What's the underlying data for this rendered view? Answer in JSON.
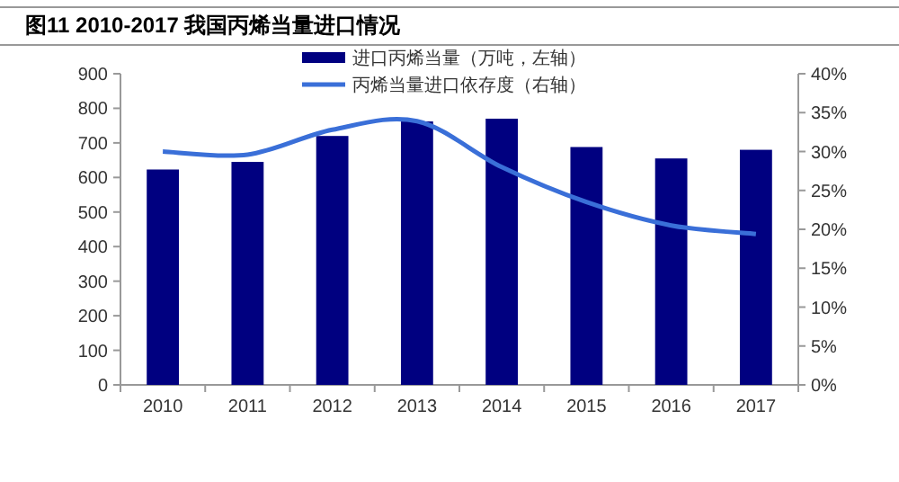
{
  "chart_data": {
    "type": "bar",
    "title": "图11  2010-2017 我国丙烯当量进口情况",
    "categories": [
      "2010",
      "2011",
      "2012",
      "2013",
      "2014",
      "2015",
      "2016",
      "2017"
    ],
    "series": [
      {
        "name": "进口丙烯当量（万吨，左轴）",
        "color": "#000080",
        "values": [
          623,
          645,
          720,
          762,
          770,
          688,
          655,
          680
        ]
      },
      {
        "name": "丙烯当量进口依存度（右轴）",
        "type": "line",
        "axis": "y2",
        "color": "#3a6fd8",
        "values": [
          30,
          29.6,
          32.8,
          33.9,
          28,
          23.5,
          20.5,
          19.4
        ]
      }
    ],
    "ylim": [
      0,
      900
    ],
    "yticks": [
      0,
      100,
      200,
      300,
      400,
      500,
      600,
      700,
      800,
      900
    ],
    "y2lim": [
      0,
      40
    ],
    "y2ticks": [
      {
        "value": 0,
        "label": "0%"
      },
      {
        "value": 5,
        "label": "5%"
      },
      {
        "value": 10,
        "label": "10%"
      },
      {
        "value": 15,
        "label": "15%"
      },
      {
        "value": 20,
        "label": "20%"
      },
      {
        "value": 25,
        "label": "25%"
      },
      {
        "value": 30,
        "label": "30%"
      },
      {
        "value": 35,
        "label": "35%"
      },
      {
        "value": 40,
        "label": "40%"
      }
    ],
    "legend": "top",
    "grid": false
  }
}
